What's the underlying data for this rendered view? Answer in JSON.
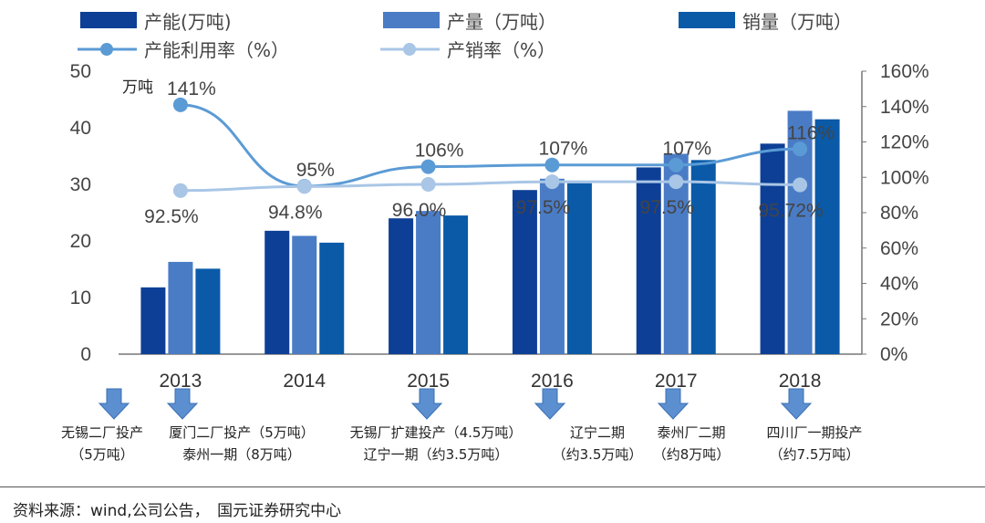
{
  "chart_data": {
    "type": "bar",
    "categories": [
      "2013",
      "2014",
      "2015",
      "2016",
      "2017",
      "2018"
    ],
    "series": [
      {
        "name": "产能(万吨)",
        "kind": "bar",
        "axis": "left",
        "color": "#0d3f96",
        "values": [
          11.8,
          21.8,
          24.0,
          29.0,
          33.0,
          37.2
        ]
      },
      {
        "name": "产量（万吨）",
        "kind": "bar",
        "axis": "left",
        "color": "#4a7cc6",
        "values": [
          16.3,
          20.9,
          25.3,
          31.0,
          35.4,
          43.0
        ]
      },
      {
        "name": "销量（万吨）",
        "kind": "bar",
        "axis": "left",
        "color": "#0a5aa8",
        "values": [
          15.1,
          19.7,
          24.5,
          30.2,
          34.3,
          41.5
        ]
      },
      {
        "name": "产能利用率（%）",
        "kind": "line",
        "axis": "right",
        "color": "#5b9bd5",
        "values": [
          141,
          95,
          106,
          107,
          107,
          116
        ]
      },
      {
        "name": "产销率（%）",
        "kind": "line",
        "axis": "right",
        "color": "#a9c6e6",
        "values": [
          92.5,
          94.8,
          96.0,
          97.5,
          97.5,
          95.72
        ]
      }
    ],
    "util_labels": [
      "141%",
      "95%",
      "106%",
      "107%",
      "107%",
      "116%"
    ],
    "sales_labels": [
      "92.5%",
      "94.8%",
      "96.0%",
      "97.5%",
      "97.5%",
      "95.72%"
    ],
    "ylim_left": [
      0,
      50
    ],
    "ylim_right": [
      0,
      160
    ],
    "yticks_left": [
      "0",
      "10",
      "20",
      "30",
      "40",
      "50"
    ],
    "yticks_right": [
      "0%",
      "20%",
      "40%",
      "60%",
      "80%",
      "100%",
      "120%",
      "140%",
      "160%"
    ],
    "left_unit": "万吨",
    "legend_position": "top",
    "grid": false,
    "annotations": [
      {
        "lines": [
          "无锡二厂投产",
          "（5万吨）"
        ]
      },
      {
        "lines": [
          "厦门二厂投产（5万吨）",
          "泰州一期（8万吨）"
        ]
      },
      {
        "lines": [
          "无锡厂扩建投产（4.5万吨）",
          "辽宁一期（约3.5万吨）"
        ]
      },
      {
        "lines": [
          "辽宁二期",
          "（约3.5万吨）"
        ]
      },
      {
        "lines": [
          "泰州厂二期",
          "（约8万吨）"
        ]
      },
      {
        "lines": [
          "四川厂一期投产",
          "（约7.5万吨）"
        ]
      }
    ]
  },
  "source_text": "资料来源：wind,公司公告，　国元证券研究中心"
}
